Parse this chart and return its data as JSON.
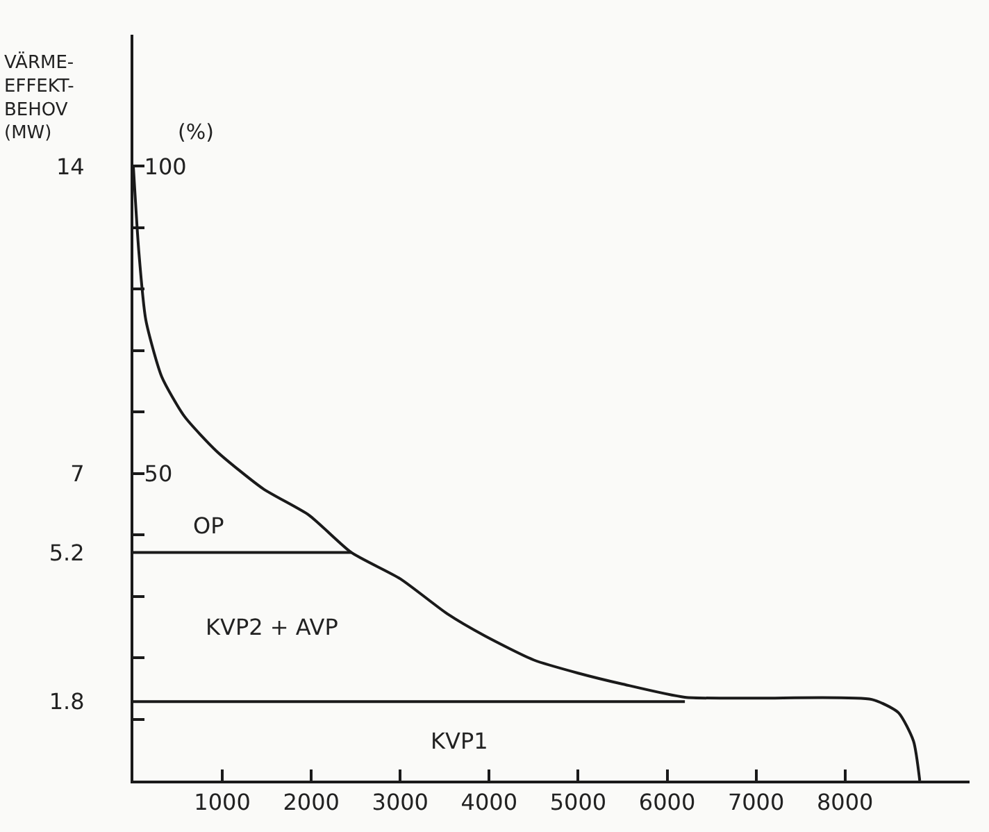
{
  "chart_data": {
    "type": "line",
    "ylabel": "VÄRME-\nEFFEKT-\nBEHOV\n(MW)",
    "y2label": "(%)",
    "series": [
      {
        "color": "#1a1a1a",
        "x": [
          0,
          60,
          140,
          320,
          575,
          940,
          1460,
          1975,
          2450,
          3000,
          3530,
          3950,
          4500,
          5000,
          5500,
          6200,
          7000,
          8300,
          8600,
          8770,
          8840
        ],
        "values": [
          14,
          12.1,
          10.5,
          9.2,
          8.3,
          7.5,
          6.65,
          6.05,
          5.2,
          4.6,
          3.8,
          3.3,
          2.75,
          2.45,
          2.2,
          1.9,
          1.88,
          1.85,
          1.55,
          0.9,
          0
        ]
      },
      {
        "color": "#1a1a1a",
        "x": [
          0,
          2450
        ],
        "values": [
          5.2,
          5.2
        ]
      },
      {
        "color": "#1a1a1a",
        "x": [
          0,
          6200
        ],
        "values": [
          1.8,
          1.8
        ]
      }
    ],
    "xlim": [
      0,
      9400
    ],
    "ylim": [
      0,
      17
    ],
    "y2lim": [
      0,
      121.4
    ],
    "xticks": [
      1000,
      2000,
      3000,
      4000,
      5000,
      6000,
      7000,
      8000
    ],
    "yticks": [
      14,
      7,
      5.2,
      1.8
    ],
    "y2ticks": [
      {
        "value": 10,
        "label": null
      },
      {
        "value": 20,
        "label": null
      },
      {
        "value": 30,
        "label": null
      },
      {
        "value": 40,
        "label": null
      },
      50,
      {
        "value": 60,
        "label": null
      },
      {
        "value": 70,
        "label": null
      },
      {
        "value": 80,
        "label": null
      },
      {
        "value": 90,
        "label": null
      },
      100
    ],
    "annotations": [
      "OP",
      "KVP2 + AVP",
      "KVP1"
    ],
    "marker": "none",
    "line_style": "solid"
  }
}
